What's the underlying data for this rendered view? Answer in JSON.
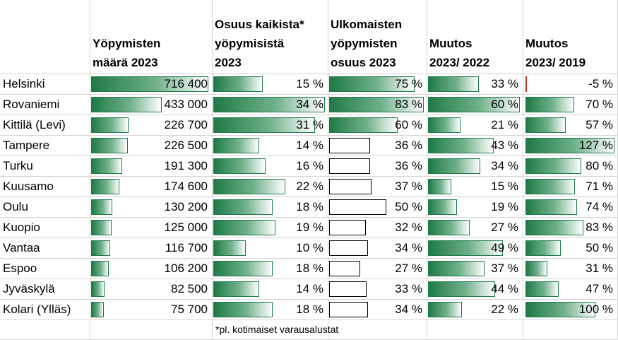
{
  "headers": {
    "city": "",
    "stays": [
      "Yöpymisten",
      "määrä 2023"
    ],
    "share_all": [
      "Osuus kaikista*",
      "yöpymisistä",
      "2023"
    ],
    "share_foreign": [
      "Ulkomaisten",
      "yöpymisten",
      "osuus 2023"
    ],
    "change_2022": [
      "Muutos",
      "2023/ 2022"
    ],
    "change_2019": [
      "Muutos",
      "2023/ 2019"
    ]
  },
  "footnote": "*pl. kotimaiset varausalustat",
  "colors": {
    "bar_green": "#1f7a47",
    "negative_bar": "#c0392b"
  },
  "rows": [
    {
      "city": "Helsinki",
      "stays": "716 400",
      "stays_n": 716400,
      "share_all": "15 %",
      "share_all_n": 15,
      "share_foreign": "75 %",
      "share_foreign_n": 75,
      "change_2022": "33 %",
      "change_2022_n": 33,
      "change_2019": "-5 %",
      "change_2019_n": -5
    },
    {
      "city": "Rovaniemi",
      "stays": "433 000",
      "stays_n": 433000,
      "share_all": "34 %",
      "share_all_n": 34,
      "share_foreign": "83 %",
      "share_foreign_n": 83,
      "change_2022": "60 %",
      "change_2022_n": 60,
      "change_2019": "70 %",
      "change_2019_n": 70
    },
    {
      "city": "Kittilä (Levi)",
      "stays": "226 700",
      "stays_n": 226700,
      "share_all": "31 %",
      "share_all_n": 31,
      "share_foreign": "60 %",
      "share_foreign_n": 60,
      "change_2022": "21 %",
      "change_2022_n": 21,
      "change_2019": "57 %",
      "change_2019_n": 57
    },
    {
      "city": "Tampere",
      "stays": "226 500",
      "stays_n": 226500,
      "share_all": "14 %",
      "share_all_n": 14,
      "share_foreign": "36 %",
      "share_foreign_n": 36,
      "change_2022": "43 %",
      "change_2022_n": 43,
      "change_2019": "127 %",
      "change_2019_n": 127
    },
    {
      "city": "Turku",
      "stays": "191 300",
      "stays_n": 191300,
      "share_all": "16 %",
      "share_all_n": 16,
      "share_foreign": "36 %",
      "share_foreign_n": 36,
      "change_2022": "34 %",
      "change_2022_n": 34,
      "change_2019": "80 %",
      "change_2019_n": 80
    },
    {
      "city": "Kuusamo",
      "stays": "174 600",
      "stays_n": 174600,
      "share_all": "22 %",
      "share_all_n": 22,
      "share_foreign": "37 %",
      "share_foreign_n": 37,
      "change_2022": "15 %",
      "change_2022_n": 15,
      "change_2019": "71 %",
      "change_2019_n": 71
    },
    {
      "city": "Oulu",
      "stays": "130 200",
      "stays_n": 130200,
      "share_all": "18 %",
      "share_all_n": 18,
      "share_foreign": "50 %",
      "share_foreign_n": 50,
      "change_2022": "19 %",
      "change_2022_n": 19,
      "change_2019": "74 %",
      "change_2019_n": 74
    },
    {
      "city": "Kuopio",
      "stays": "125 000",
      "stays_n": 125000,
      "share_all": "19 %",
      "share_all_n": 19,
      "share_foreign": "32 %",
      "share_foreign_n": 32,
      "change_2022": "27 %",
      "change_2022_n": 27,
      "change_2019": "83 %",
      "change_2019_n": 83
    },
    {
      "city": "Vantaa",
      "stays": "116 700",
      "stays_n": 116700,
      "share_all": "10 %",
      "share_all_n": 10,
      "share_foreign": "34 %",
      "share_foreign_n": 34,
      "change_2022": "49 %",
      "change_2022_n": 49,
      "change_2019": "50 %",
      "change_2019_n": 50
    },
    {
      "city": "Espoo",
      "stays": "106 200",
      "stays_n": 106200,
      "share_all": "18 %",
      "share_all_n": 18,
      "share_foreign": "27 %",
      "share_foreign_n": 27,
      "change_2022": "37 %",
      "change_2022_n": 37,
      "change_2019": "31 %",
      "change_2019_n": 31
    },
    {
      "city": "Jyväskylä",
      "stays": "82 500",
      "stays_n": 82500,
      "share_all": "14 %",
      "share_all_n": 14,
      "share_foreign": "33 %",
      "share_foreign_n": 33,
      "change_2022": "44 %",
      "change_2022_n": 44,
      "change_2019": "47 %",
      "change_2019_n": 47
    },
    {
      "city": "Kolari (Ylläs)",
      "stays": "75 700",
      "stays_n": 75700,
      "share_all": "18 %",
      "share_all_n": 18,
      "share_foreign": "34 %",
      "share_foreign_n": 34,
      "change_2022": "22 %",
      "change_2022_n": 22,
      "change_2019": "100 %",
      "change_2019_n": 100
    }
  ]
}
